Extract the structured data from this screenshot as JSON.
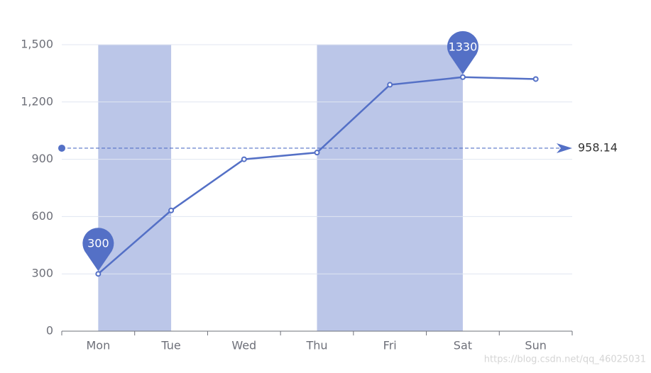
{
  "chart_data": {
    "type": "line",
    "categories": [
      "Mon",
      "Tue",
      "Wed",
      "Thu",
      "Fri",
      "Sat",
      "Sun"
    ],
    "values": [
      300,
      632,
      900,
      935,
      1290,
      1330,
      1320
    ],
    "color": "#5470c6",
    "ylim": [
      0,
      1500
    ],
    "yticks": [
      0,
      300,
      600,
      900,
      {
        "value": 1200,
        "label": "1,200"
      },
      {
        "value": 1500,
        "label": "1,500"
      }
    ],
    "grid": true,
    "mark_areas": [
      [
        "Mon",
        "Tue"
      ],
      [
        "Thu",
        "Sat"
      ]
    ],
    "mark_points": [
      {
        "x": "Mon",
        "value": 300
      },
      {
        "x": "Sat",
        "value": 1330
      }
    ],
    "mark_line": {
      "value": 958.14
    },
    "watermark": "https://blog.csdn.net/qq_46025031"
  }
}
